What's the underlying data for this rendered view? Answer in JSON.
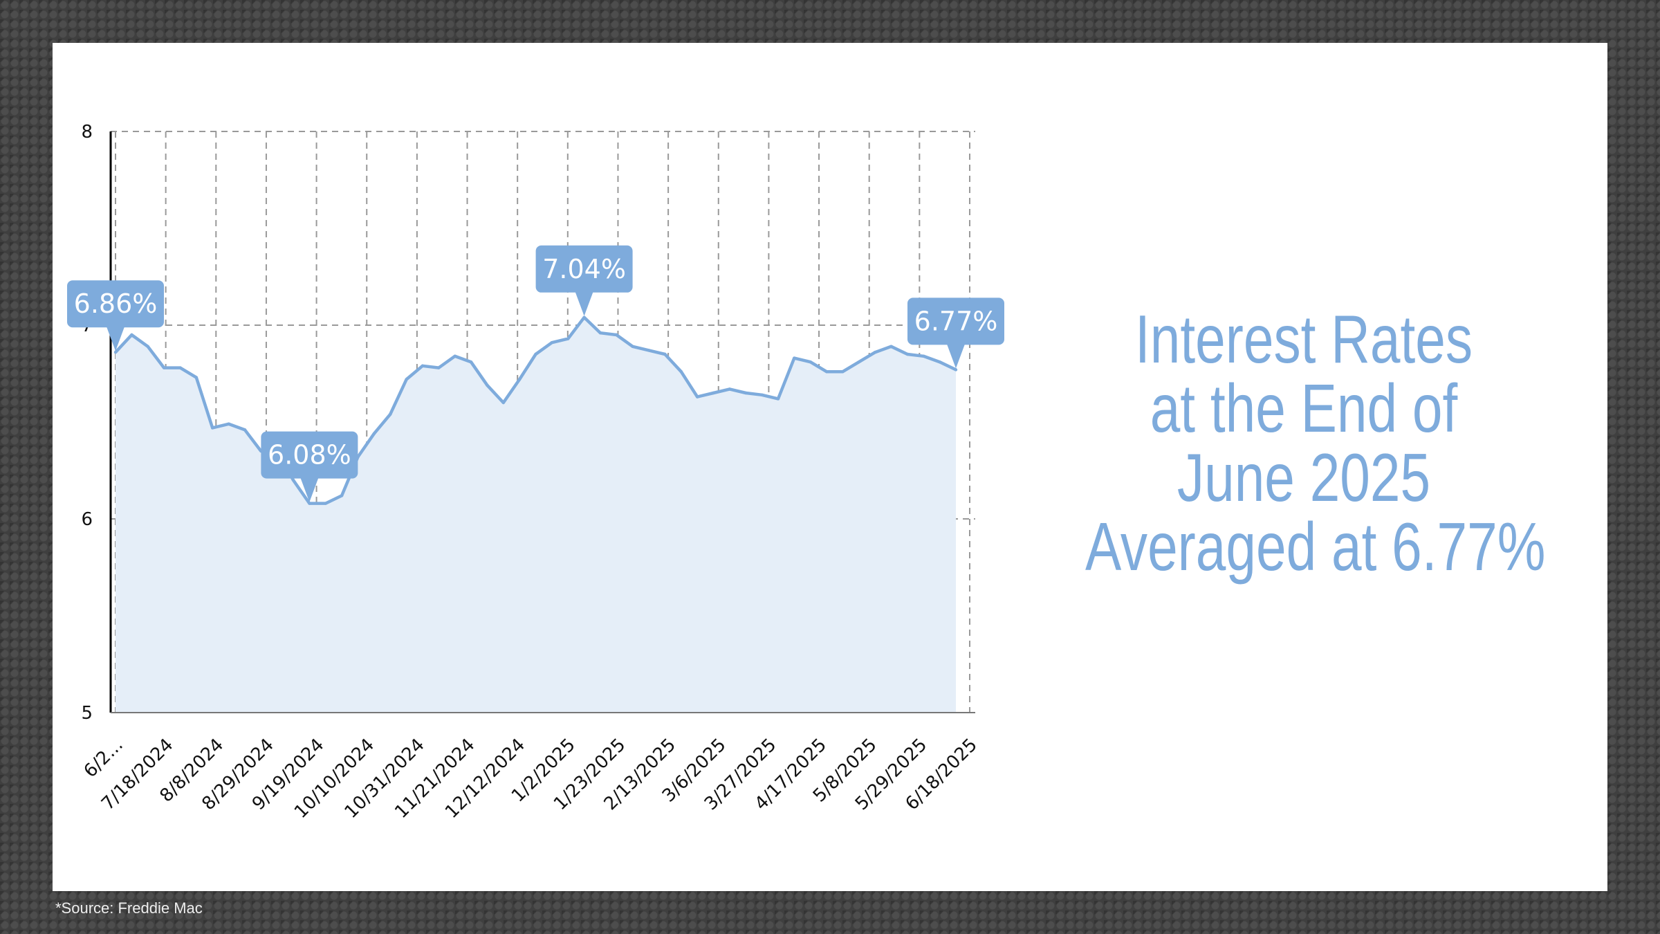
{
  "headline": {
    "line1": "Interest Rates",
    "line2": "at the End of",
    "line3": "June 2025",
    "line4": "Averaged at 6.77%"
  },
  "source": "*Source: Freddie Mac",
  "colors": {
    "line": "#7eabdc",
    "area": "#e5eef8",
    "callout": "#7eabdc",
    "callout_text": "#ffffff",
    "grid": "#999999",
    "axis": "#000000"
  },
  "chart_data": {
    "type": "area",
    "title": "",
    "xlabel": "",
    "ylabel": "",
    "ylim": [
      5,
      8
    ],
    "yticks": [
      5,
      6,
      7,
      8
    ],
    "grid": true,
    "x_tick_labels": [
      "6/2...",
      "7/18/2024",
      "8/8/2024",
      "8/29/2024",
      "9/19/2024",
      "10/10/2024",
      "10/31/2024",
      "11/21/2024",
      "12/12/2024",
      "1/2/2025",
      "1/23/2025",
      "2/13/2025",
      "3/6/2025",
      "3/27/2025",
      "4/17/2025",
      "5/8/2025",
      "5/29/2025",
      "6/18/2025"
    ],
    "values": [
      6.86,
      6.95,
      6.89,
      6.78,
      6.78,
      6.73,
      6.47,
      6.49,
      6.46,
      6.35,
      6.35,
      6.2,
      6.08,
      6.08,
      6.12,
      6.32,
      6.44,
      6.54,
      6.72,
      6.79,
      6.78,
      6.84,
      6.81,
      6.69,
      6.6,
      6.72,
      6.85,
      6.91,
      6.93,
      7.04,
      6.96,
      6.95,
      6.89,
      6.87,
      6.85,
      6.76,
      6.63,
      6.65,
      6.67,
      6.65,
      6.64,
      6.62,
      6.83,
      6.81,
      6.76,
      6.76,
      6.81,
      6.86,
      6.89,
      6.85,
      6.84,
      6.81,
      6.77
    ],
    "annotations": [
      {
        "index": 0,
        "label": "6.86%",
        "position": "above"
      },
      {
        "index": 12,
        "label": "6.08%",
        "position": "above"
      },
      {
        "index": 29,
        "label": "7.04%",
        "position": "above"
      },
      {
        "index": 52,
        "label": "6.77%",
        "position": "above"
      }
    ]
  }
}
